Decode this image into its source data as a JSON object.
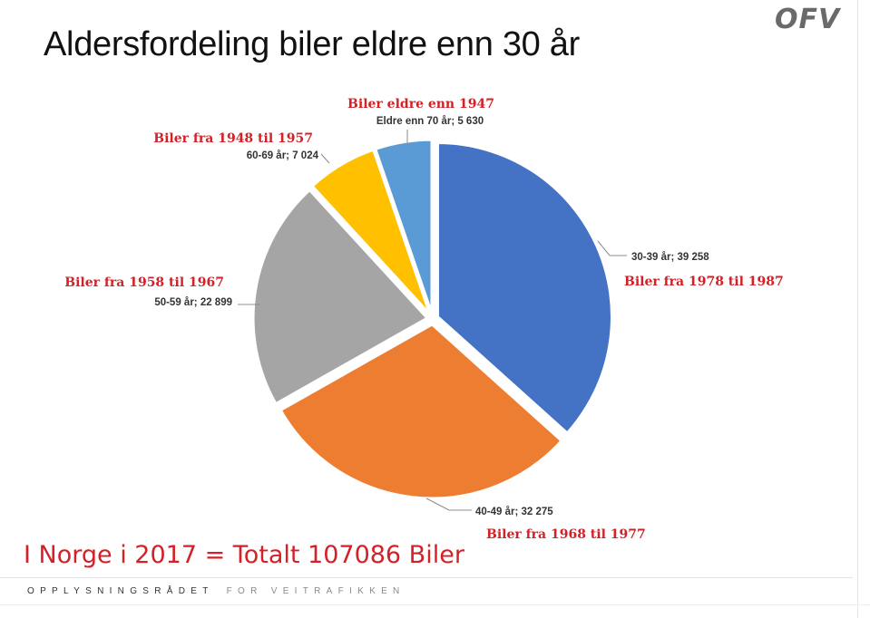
{
  "slide": {
    "title": "Aldersfordeling biler eldre enn 30 år",
    "logo": "OFV",
    "total_text": "I Norge i 2017 = Totalt 107086 Biler",
    "footer_bold": "OPPLYSNINGSRÅDET",
    "footer_light": "FOR VEITRAFIKKEN"
  },
  "chart_data": {
    "type": "pie",
    "title": "Aldersfordeling biler eldre enn 30 år",
    "slices": [
      {
        "category": "Biler fra 1978 til 1987",
        "label": "30-39 år",
        "value": 39258,
        "value_text": "39 258",
        "color": "#4472c4"
      },
      {
        "category": "Biler fra 1968 til 1977",
        "label": "40-49 år",
        "value": 32275,
        "value_text": "32 275",
        "color": "#ed7d31"
      },
      {
        "category": "Biler fra 1958 til 1967",
        "label": "50-59 år",
        "value": 22899,
        "value_text": "22 899",
        "color": "#a5a5a5"
      },
      {
        "category": "Biler fra 1948 til 1957",
        "label": "60-69 år",
        "value": 7024,
        "value_text": "7 024",
        "color": "#ffc000"
      },
      {
        "category": "Biler eldre enn 1947",
        "label": "Eldre enn 70 år",
        "value": 5630,
        "value_text": "5 630",
        "color": "#5b9bd5"
      }
    ],
    "category_label_color": "#d42027",
    "value_label_color": "#333333",
    "start_angle": "12 o'clock",
    "direction": "clockwise",
    "exploded": true
  }
}
